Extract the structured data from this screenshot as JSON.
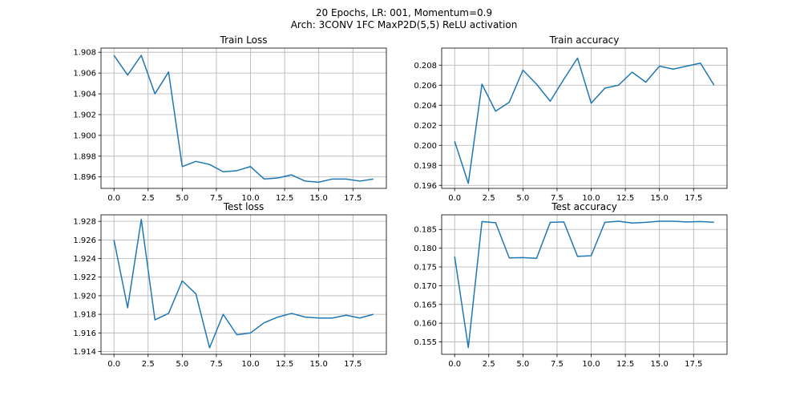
{
  "figure": {
    "title_line1": "20 Epochs, LR: 001, Momentum=0.9",
    "title_line2": "Arch: 3CONV 1FC MaxP2D(5,5) ReLU activation"
  },
  "colors": {
    "line": "#1f77b4",
    "grid": "#b0b0b0",
    "axes": "#000000"
  },
  "chart_data": [
    {
      "type": "line",
      "title": "Train Loss",
      "xlabel": "",
      "ylabel": "",
      "xlim": [
        -0.95,
        19.95
      ],
      "ylim": [
        1.8949,
        1.9084
      ],
      "xticks": [
        0.0,
        2.5,
        5.0,
        7.5,
        10.0,
        12.5,
        15.0,
        17.5
      ],
      "xtick_labels": [
        "0.0",
        "2.5",
        "5.0",
        "7.5",
        "10.0",
        "12.5",
        "15.0",
        "17.5"
      ],
      "yticks": [
        1.896,
        1.898,
        1.9,
        1.902,
        1.904,
        1.906,
        1.908
      ],
      "ytick_labels": [
        "1.896",
        "1.898",
        "1.900",
        "1.902",
        "1.904",
        "1.906",
        "1.908"
      ],
      "grid": true,
      "x": [
        0,
        1,
        2,
        3,
        4,
        5,
        6,
        7,
        8,
        9,
        10,
        11,
        12,
        13,
        14,
        15,
        16,
        17,
        18,
        19
      ],
      "y": [
        1.9077,
        1.9058,
        1.9077,
        1.904,
        1.9061,
        1.897,
        1.8975,
        1.8972,
        1.8965,
        1.8966,
        1.897,
        1.8958,
        1.8959,
        1.8962,
        1.8956,
        1.8955,
        1.8958,
        1.8958,
        1.8956,
        1.8958
      ]
    },
    {
      "type": "line",
      "title": "Train accuracy",
      "xlabel": "",
      "ylabel": "",
      "xlim": [
        -0.95,
        19.95
      ],
      "ylim": [
        0.1957,
        0.2097
      ],
      "xticks": [
        0.0,
        2.5,
        5.0,
        7.5,
        10.0,
        12.5,
        15.0,
        17.5
      ],
      "xtick_labels": [
        "0.0",
        "2.5",
        "5.0",
        "7.5",
        "10.0",
        "12.5",
        "15.0",
        "17.5"
      ],
      "yticks": [
        0.196,
        0.198,
        0.2,
        0.202,
        0.204,
        0.206,
        0.208
      ],
      "ytick_labels": [
        "0.196",
        "0.198",
        "0.200",
        "0.202",
        "0.204",
        "0.206",
        "0.208"
      ],
      "grid": true,
      "x": [
        0,
        1,
        2,
        3,
        4,
        5,
        6,
        7,
        8,
        9,
        10,
        11,
        12,
        13,
        14,
        15,
        16,
        17,
        18,
        19
      ],
      "y": [
        0.2004,
        0.1962,
        0.2061,
        0.2034,
        0.2043,
        0.2075,
        0.2061,
        0.2044,
        0.2066,
        0.2087,
        0.2042,
        0.2057,
        0.206,
        0.2073,
        0.2063,
        0.2079,
        0.2076,
        0.2079,
        0.2082,
        0.206
      ]
    },
    {
      "type": "line",
      "title": "Test loss",
      "xlabel": "",
      "ylabel": "",
      "xlim": [
        -0.95,
        19.95
      ],
      "ylim": [
        1.9137,
        1.9287
      ],
      "xticks": [
        0.0,
        2.5,
        5.0,
        7.5,
        10.0,
        12.5,
        15.0,
        17.5
      ],
      "xtick_labels": [
        "0.0",
        "2.5",
        "5.0",
        "7.5",
        "10.0",
        "12.5",
        "15.0",
        "17.5"
      ],
      "yticks": [
        1.914,
        1.916,
        1.918,
        1.92,
        1.922,
        1.924,
        1.926,
        1.928
      ],
      "ytick_labels": [
        "1.914",
        "1.916",
        "1.918",
        "1.920",
        "1.922",
        "1.924",
        "1.926",
        "1.928"
      ],
      "grid": true,
      "x": [
        0,
        1,
        2,
        3,
        4,
        5,
        6,
        7,
        8,
        9,
        10,
        11,
        12,
        13,
        14,
        15,
        16,
        17,
        18,
        19
      ],
      "y": [
        1.926,
        1.9187,
        1.9282,
        1.9174,
        1.9181,
        1.9216,
        1.9202,
        1.9144,
        1.918,
        1.9158,
        1.916,
        1.9171,
        1.9177,
        1.9181,
        1.9177,
        1.9176,
        1.9176,
        1.9179,
        1.9176,
        1.918
      ]
    },
    {
      "type": "line",
      "title": "Test accuracy",
      "xlabel": "",
      "ylabel": "",
      "xlim": [
        -0.95,
        19.95
      ],
      "ylim": [
        0.1517,
        0.1889
      ],
      "xticks": [
        0.0,
        2.5,
        5.0,
        7.5,
        10.0,
        12.5,
        15.0,
        17.5
      ],
      "xtick_labels": [
        "0.0",
        "2.5",
        "5.0",
        "7.5",
        "10.0",
        "12.5",
        "15.0",
        "17.5"
      ],
      "yticks": [
        0.155,
        0.16,
        0.165,
        0.17,
        0.175,
        0.18,
        0.185
      ],
      "ytick_labels": [
        "0.155",
        "0.160",
        "0.165",
        "0.170",
        "0.175",
        "0.180",
        "0.185"
      ],
      "grid": true,
      "x": [
        0,
        1,
        2,
        3,
        4,
        5,
        6,
        7,
        8,
        9,
        10,
        11,
        12,
        13,
        14,
        15,
        16,
        17,
        18,
        19
      ],
      "y": [
        0.1778,
        0.1535,
        0.1871,
        0.1868,
        0.1774,
        0.1775,
        0.1773,
        0.1869,
        0.187,
        0.1778,
        0.178,
        0.1869,
        0.1872,
        0.1867,
        0.1869,
        0.1872,
        0.1872,
        0.187,
        0.1871,
        0.1869
      ]
    }
  ]
}
